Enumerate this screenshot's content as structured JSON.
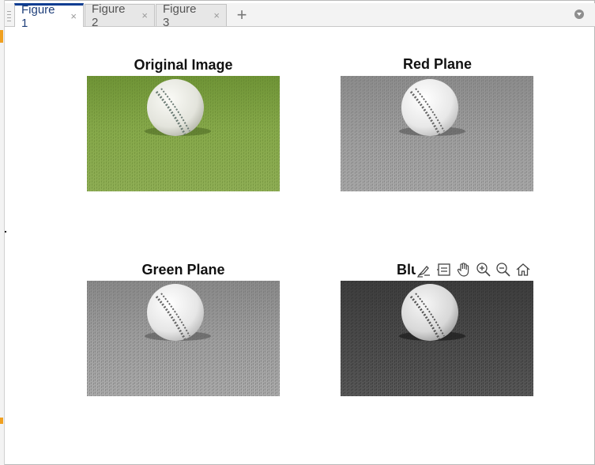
{
  "tabs": [
    {
      "label": "Figure 1",
      "active": true,
      "close": "×"
    },
    {
      "label": "Figure 2",
      "active": false,
      "close": "×"
    },
    {
      "label": "Figure 3",
      "active": false,
      "close": "×"
    }
  ],
  "add_tab_label": "+",
  "subplots": [
    {
      "title": "Original Image",
      "variant": "color"
    },
    {
      "title": "Red Plane",
      "variant": "red"
    },
    {
      "title": "Green Plane",
      "variant": "green"
    },
    {
      "title": "Blu",
      "variant": "blue"
    }
  ],
  "toolbar_icons": [
    "brush-icon",
    "data-tip-icon",
    "pan-hand-icon",
    "zoom-in-icon",
    "zoom-out-icon",
    "home-icon"
  ],
  "colors": {
    "active_tab_accent": "#0d3d91",
    "grass_green": "#7fa244",
    "gutter_marker": "#f0a020"
  }
}
